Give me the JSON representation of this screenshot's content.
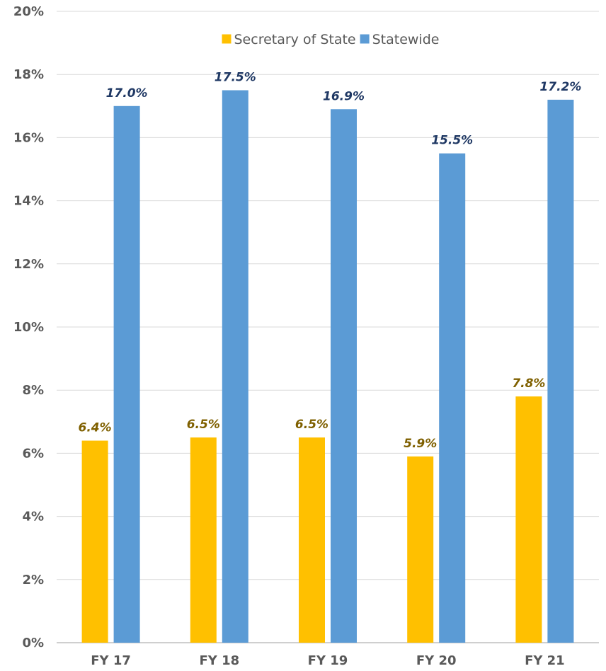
{
  "chart_data": {
    "type": "bar",
    "title": "",
    "xlabel": "",
    "ylabel": "",
    "categories": [
      "FY 17",
      "FY 18",
      "FY 19",
      "FY 20",
      "FY 21"
    ],
    "series": [
      {
        "name": "Secretary of State",
        "color": "#FFC000",
        "label_color": "#7F6000",
        "values": [
          6.4,
          6.5,
          6.5,
          5.9,
          7.8
        ],
        "labels": [
          "6.4%",
          "6.5%",
          "6.5%",
          "5.9%",
          "7.8%"
        ]
      },
      {
        "name": "Statewide",
        "color": "#5B9BD5",
        "label_color": "#1F3864",
        "values": [
          17.0,
          17.5,
          16.9,
          15.5,
          17.2
        ],
        "labels": [
          "17.0%",
          "17.5%",
          "16.9%",
          "15.5%",
          "17.2%"
        ]
      }
    ],
    "ylim": [
      0,
      20
    ],
    "y_ticks": [
      0,
      2,
      4,
      6,
      8,
      10,
      12,
      14,
      16,
      18,
      20
    ],
    "y_tick_labels": [
      "0%",
      "2%",
      "4%",
      "6%",
      "8%",
      "10%",
      "12%",
      "14%",
      "16%",
      "18%",
      "20%"
    ],
    "grid": true,
    "legend_position": "top-center"
  }
}
